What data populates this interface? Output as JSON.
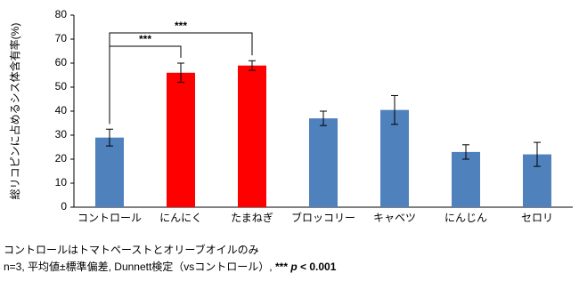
{
  "chart_data": {
    "type": "bar",
    "y_label": "総リコピンに占めるシス体含有率(%)",
    "categories": [
      "コントロール",
      "にんにく",
      "たまねぎ",
      "ブロッコリー",
      "キャベツ",
      "にんじん",
      "セロリ"
    ],
    "values": [
      29,
      56,
      59,
      37,
      40.5,
      23,
      22
    ],
    "errors": [
      3.5,
      4,
      2,
      3,
      6,
      3,
      5
    ],
    "colors": [
      "#4f81bd",
      "#ff0000",
      "#ff0000",
      "#4f81bd",
      "#4f81bd",
      "#4f81bd",
      "#4f81bd"
    ],
    "ylim": [
      0,
      80
    ],
    "yticks": [
      0,
      10,
      20,
      30,
      40,
      50,
      60,
      70,
      80
    ],
    "grid": false,
    "annotations": [
      {
        "text": "***",
        "from": "コントロール",
        "to": "にんにく"
      },
      {
        "text": "***",
        "from": "コントロール",
        "to": "たまねぎ"
      }
    ],
    "footnotes": [
      "コントロールはトマトペーストとオリーブオイルのみ",
      "n=3, 平均値±標準偏差, Dunnett検定（vsコントロール）, "
    ],
    "significance_note": {
      "stars": "***",
      "p": "p",
      "threshold": "< 0.001"
    }
  }
}
